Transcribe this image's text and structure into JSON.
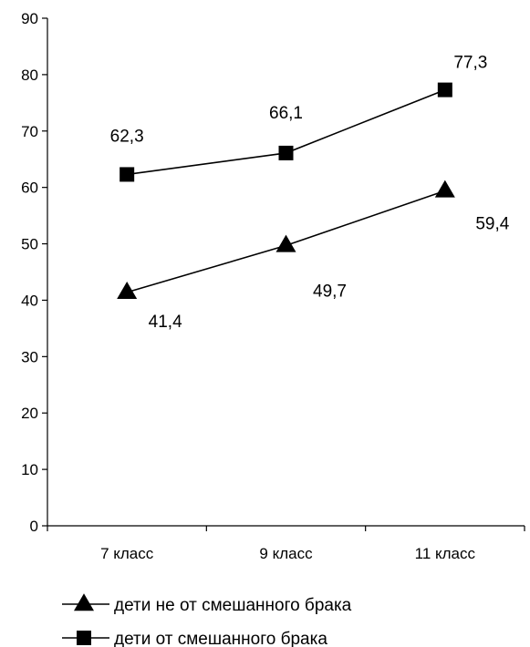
{
  "chart_data": {
    "type": "line",
    "categories": [
      "7 класс",
      "9 класс",
      "11 класс"
    ],
    "series": [
      {
        "name": "дети не от смешанного брака",
        "marker": "triangle",
        "values": [
          41.4,
          49.7,
          59.4
        ],
        "labels": [
          "41,4",
          "49,7",
          "59,4"
        ]
      },
      {
        "name": "дети от смешанного брака",
        "marker": "square",
        "values": [
          62.3,
          66.1,
          77.3
        ],
        "labels": [
          "62,3",
          "66,1",
          "77,3"
        ]
      }
    ],
    "ylim": [
      0,
      90
    ],
    "yticks": [
      0,
      10,
      20,
      30,
      40,
      50,
      60,
      70,
      80,
      90
    ],
    "legend_position": "bottom",
    "grid": false,
    "line_color": "#000000"
  }
}
